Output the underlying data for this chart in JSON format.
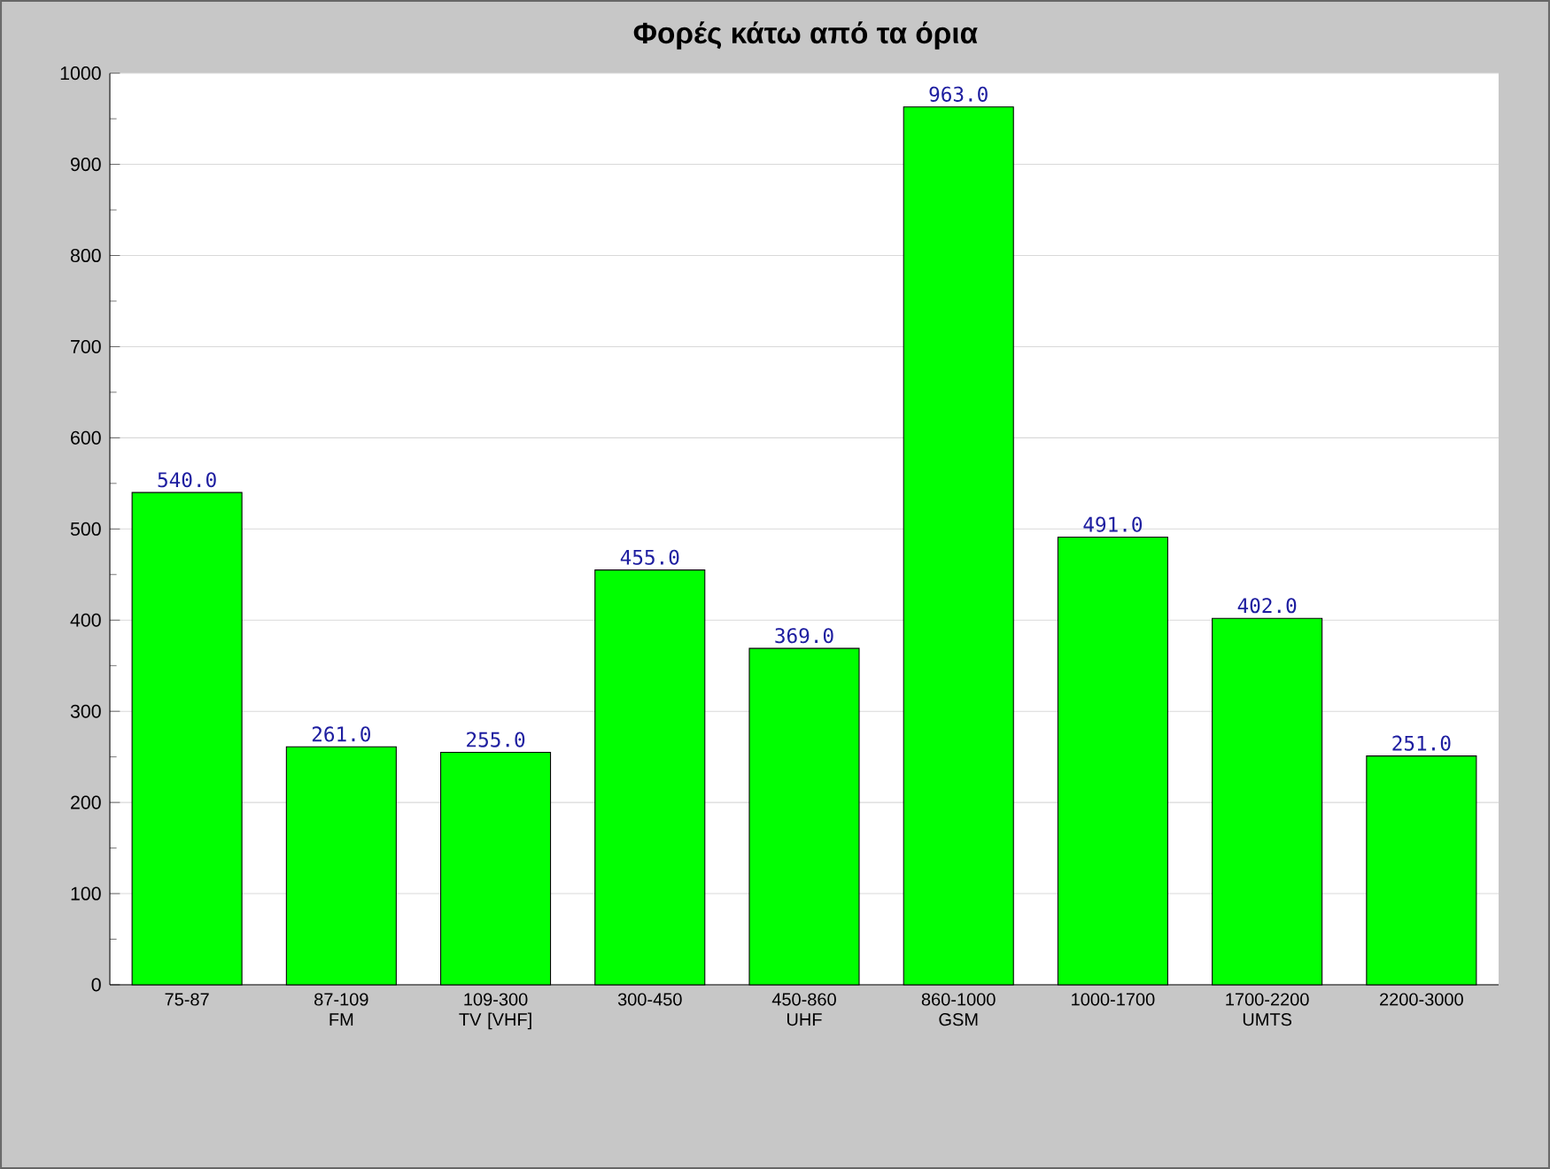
{
  "chart_data": {
    "type": "bar",
    "title": "Φορές κάτω από τα όρια",
    "categories": [
      "75-87",
      "87-109 FM",
      "109-300 TV [VHF]",
      "300-450",
      "450-860 UHF",
      "860-1000 GSM",
      "1000-1700",
      "1700-2200 UMTS",
      "2200-3000"
    ],
    "values": [
      540,
      261,
      255,
      455,
      369,
      963,
      491,
      402,
      251
    ],
    "value_labels": [
      "540.0",
      "261.0",
      "255.0",
      "455.0",
      "369.0",
      "963.0",
      "491.0",
      "402.0",
      "251.0"
    ],
    "color": "#00ff00",
    "ylim": [
      0,
      1000
    ],
    "yticks": [
      0,
      100,
      200,
      300,
      400,
      500,
      600,
      700,
      800,
      900,
      1000
    ],
    "grid": "y"
  }
}
